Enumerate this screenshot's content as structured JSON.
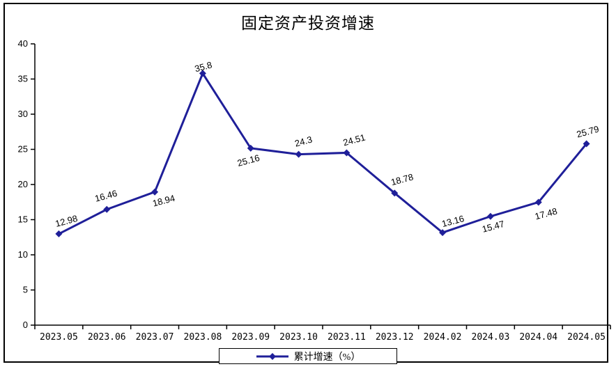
{
  "chart_data": {
    "type": "line",
    "title": "固定资产投资增速",
    "categories": [
      "2023.05",
      "2023.06",
      "2023.07",
      "2023.08",
      "2023.09",
      "2023.10",
      "2023.11",
      "2023.12",
      "2024.02",
      "2024.03",
      "2024.04",
      "2024.05"
    ],
    "series": [
      {
        "name": "累计增速（%）",
        "values": [
          12.98,
          16.46,
          18.94,
          35.8,
          25.16,
          24.3,
          24.51,
          18.78,
          13.16,
          15.47,
          17.48,
          25.79
        ],
        "data_labels": [
          "12.98",
          "16.46",
          "18.94",
          "35.8",
          "25.16",
          "24.3",
          "24.51",
          "18.78",
          "13.16",
          "15.47",
          "17.48",
          "25.79"
        ]
      }
    ],
    "ylim": [
      0,
      40
    ],
    "ytick_step": 5,
    "ytick_labels": [
      "0",
      "5",
      "10",
      "15",
      "20",
      "25",
      "30",
      "35",
      "40"
    ],
    "grid": false,
    "legend_position": "bottom",
    "line_color": "#1f1f99",
    "marker": "diamond",
    "axis_color": "#000000",
    "background_color": "#ffffff"
  }
}
